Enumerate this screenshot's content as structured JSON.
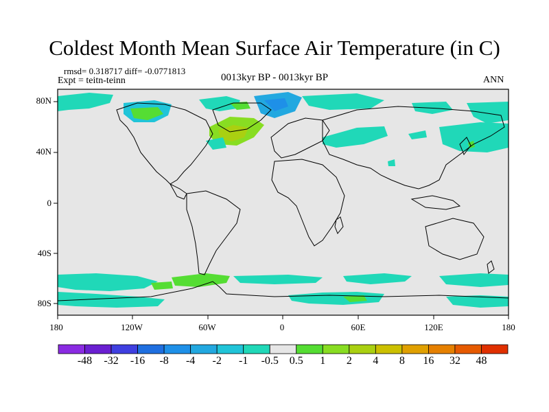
{
  "title": "Coldest Month Mean Surface Air Temperature (in C)",
  "stats": "rmsd= 0.318717  diff= -0.0771813",
  "expt": "Expt = teitn-teinn",
  "period": "0013kyr BP - 0013kyr BP",
  "season": "ANN",
  "lat_labels": [
    "80N",
    "40N",
    "0",
    "40S",
    "80S"
  ],
  "lon_labels": [
    "180",
    "120W",
    "60W",
    "0",
    "60E",
    "120E",
    "180"
  ],
  "colorbar": {
    "labels": [
      "-48",
      "-32",
      "-16",
      "-8",
      "-4",
      "-2",
      "-1",
      "-0.5",
      "0.5",
      "1",
      "2",
      "4",
      "8",
      "16",
      "32",
      "48"
    ],
    "colors": [
      "#8a2be2",
      "#6a1fd1",
      "#3f3fe0",
      "#1f6fe0",
      "#1e90e8",
      "#22a8e0",
      "#20c4d8",
      "#20d8b8",
      "#e6e6e6",
      "#55dd33",
      "#88dd22",
      "#aad011",
      "#ccc000",
      "#e0a000",
      "#e68000",
      "#e65a00",
      "#e03000"
    ]
  }
}
